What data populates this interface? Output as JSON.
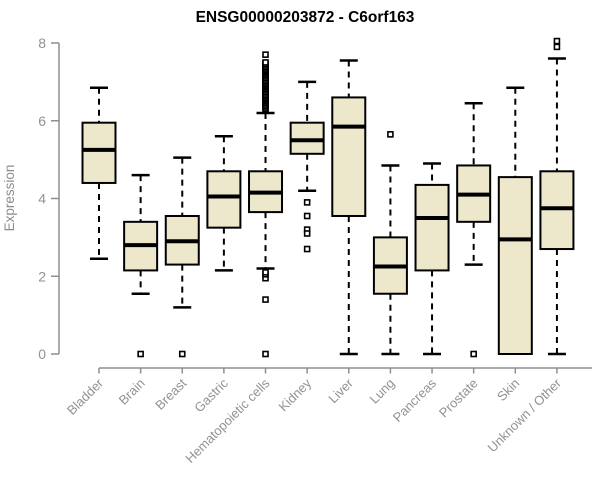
{
  "title": "ENSG00000203872 - C6orf163",
  "colors": {
    "box_fill": "#EDE7CB",
    "box_stroke": "#000000",
    "median": "#000000",
    "whisker": "#000000",
    "outlier_stroke": "#000000",
    "outlier_fill": "#FFFFFF",
    "axis": "#8F8F8F",
    "tick_label": "#929292",
    "axis_label": "#8C8C8C",
    "title_color": "#000000",
    "background": "#FFFFFF"
  },
  "chart_data": {
    "type": "boxplot",
    "title": "ENSG00000203872 - C6orf163",
    "xlabel": "",
    "ylabel": "Expression",
    "ylim": [
      0,
      8
    ],
    "yticks": [
      0,
      2,
      4,
      6,
      8
    ],
    "grid": false,
    "legend": "none",
    "categories": [
      "Bladder",
      "Brain",
      "Breast",
      "Gastric",
      "Hematopoietic cells",
      "Kidney",
      "Liver",
      "Lung",
      "Pancreas",
      "Prostate",
      "Skin",
      "Unknown / Other"
    ],
    "series": [
      {
        "name": "Bladder",
        "low": 2.45,
        "q1": 4.4,
        "median": 5.25,
        "q3": 5.95,
        "high": 6.85,
        "outliers": []
      },
      {
        "name": "Brain",
        "low": 1.55,
        "q1": 2.15,
        "median": 2.8,
        "q3": 3.4,
        "high": 4.6,
        "outliers": [
          0
        ]
      },
      {
        "name": "Breast",
        "low": 1.2,
        "q1": 2.3,
        "median": 2.9,
        "q3": 3.55,
        "high": 5.05,
        "outliers": [
          0
        ]
      },
      {
        "name": "Gastric",
        "low": 2.15,
        "q1": 3.25,
        "median": 4.05,
        "q3": 4.7,
        "high": 5.6,
        "outliers": []
      },
      {
        "name": "Hematopoietic cells",
        "low": 2.2,
        "q1": 3.65,
        "median": 4.15,
        "q3": 4.7,
        "high": 6.2,
        "outliers": [
          0,
          1.4,
          1.95,
          2.05,
          2.1,
          6.3,
          6.34,
          6.38,
          6.42,
          6.46,
          6.5,
          6.54,
          6.58,
          6.62,
          6.66,
          6.7,
          6.74,
          6.78,
          6.82,
          6.86,
          6.9,
          6.94,
          6.98,
          7.02,
          7.06,
          7.1,
          7.14,
          7.18,
          7.22,
          7.26,
          7.3,
          7.34,
          7.38,
          7.42,
          7.46,
          7.5,
          7.7
        ]
      },
      {
        "name": "Kidney",
        "low": 4.2,
        "q1": 5.15,
        "median": 5.5,
        "q3": 5.95,
        "high": 7.0,
        "outliers": [
          3.9,
          3.55,
          3.2,
          3.1,
          2.7
        ]
      },
      {
        "name": "Liver",
        "low": 0.0,
        "q1": 3.55,
        "median": 5.85,
        "q3": 6.6,
        "high": 7.55,
        "outliers": []
      },
      {
        "name": "Lung",
        "low": 0.0,
        "q1": 1.55,
        "median": 2.25,
        "q3": 3.0,
        "high": 4.85,
        "outliers": [
          5.65
        ]
      },
      {
        "name": "Pancreas",
        "low": 0.0,
        "q1": 2.15,
        "median": 3.5,
        "q3": 4.35,
        "high": 4.9,
        "outliers": []
      },
      {
        "name": "Prostate",
        "low": 2.3,
        "q1": 3.4,
        "median": 4.1,
        "q3": 4.85,
        "high": 6.45,
        "outliers": [
          0
        ]
      },
      {
        "name": "Skin",
        "low": 0.0,
        "q1": 0.0,
        "median": 2.95,
        "q3": 4.55,
        "high": 6.85,
        "outliers": []
      },
      {
        "name": "Unknown / Other",
        "low": 0.0,
        "q1": 2.7,
        "median": 3.75,
        "q3": 4.7,
        "high": 7.6,
        "outliers": [
          7.9,
          8.05
        ]
      }
    ]
  }
}
